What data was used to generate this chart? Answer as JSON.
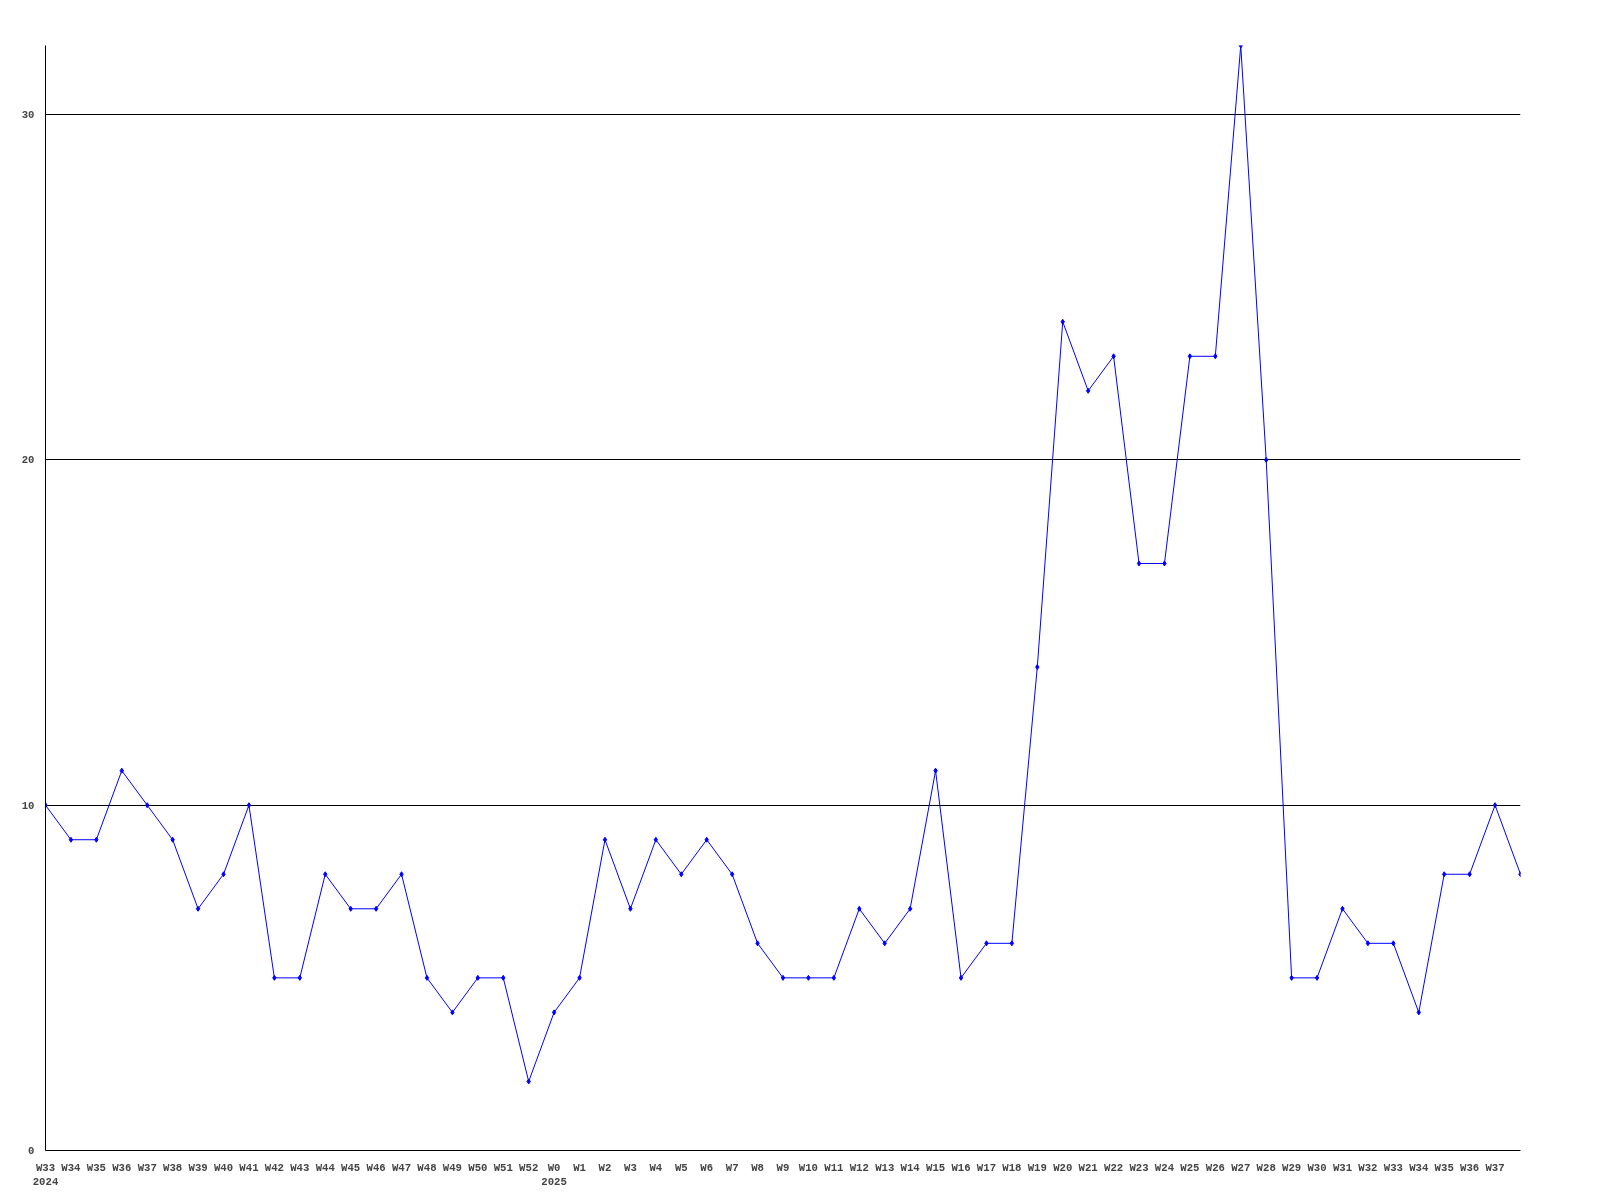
{
  "chart_data": {
    "type": "line",
    "categories": [
      "W33\n2024",
      "W34",
      "W35",
      "W36",
      "W37",
      "W38",
      "W39",
      "W40",
      "W41",
      "W42",
      "W43",
      "W44",
      "W45",
      "W46",
      "W47",
      "W48",
      "W49",
      "W50",
      "W51",
      "W52",
      "W0\n2025",
      "W1",
      "W2",
      "W3",
      "W4",
      "W5",
      "W6",
      "W7",
      "W8",
      "W9",
      "W10",
      "W11",
      "W12",
      "W13",
      "W14",
      "W15",
      "W16",
      "W17",
      "W18",
      "W19",
      "W20",
      "W21",
      "W22",
      "W23",
      "W24",
      "W25",
      "W26",
      "W27",
      "W28",
      "W29",
      "W30",
      "W31",
      "W32",
      "W33",
      "W34",
      "W35",
      "W36",
      "W37",
      null
    ],
    "series": [
      {
        "color": "#0000ff",
        "values": [
          10,
          9,
          9,
          11,
          10,
          9,
          7,
          8,
          10,
          5,
          5,
          8,
          7,
          7,
          8,
          5,
          4,
          5,
          5,
          2,
          4,
          5,
          9,
          7,
          9,
          8,
          9,
          8,
          6,
          5,
          5,
          5,
          7,
          6,
          7,
          11,
          5,
          6,
          6,
          14,
          24,
          22,
          23,
          17,
          17,
          23,
          23,
          32,
          20,
          5,
          5,
          7,
          6,
          6,
          4,
          8,
          8,
          10,
          8
        ]
      }
    ],
    "ylim": [
      0,
      32
    ],
    "yticks": [
      0,
      10,
      20,
      30
    ],
    "grid": "y",
    "marker": "diamond",
    "line_style": "solid"
  }
}
